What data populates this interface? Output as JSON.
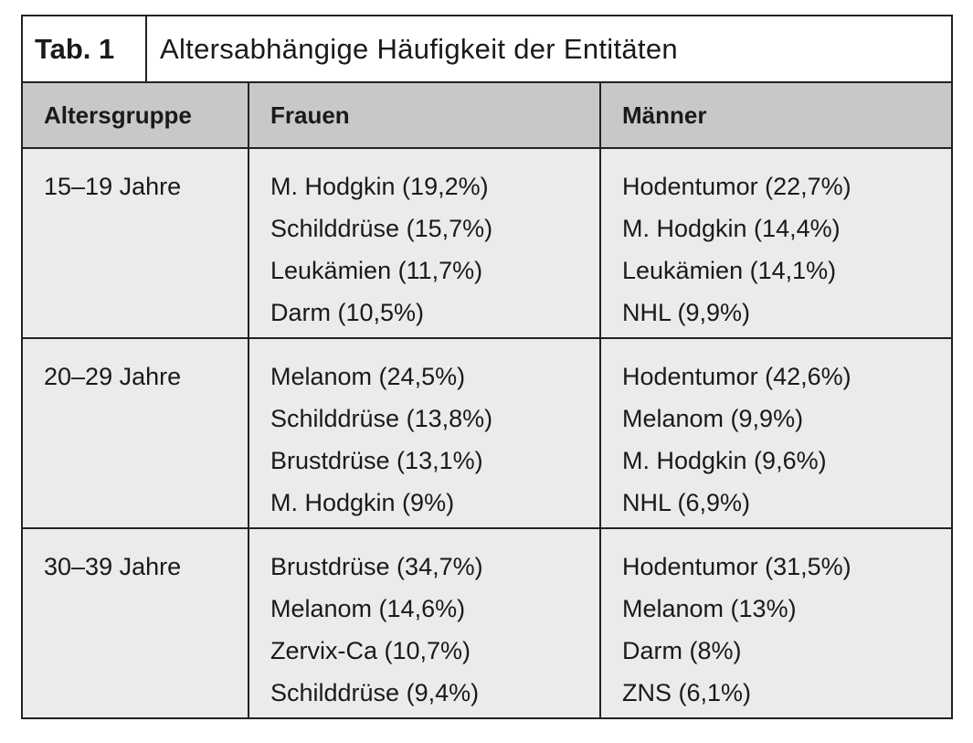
{
  "table": {
    "tab_label": "Tab. 1",
    "title": "Altersabhängige Häufigkeit der Entitäten",
    "headers": {
      "age": "Altersgruppe",
      "women": "Frauen",
      "men": "Männer"
    },
    "rows": [
      {
        "age": "15–19 Jahre",
        "women": [
          "M. Hodgkin (19,2%)",
          "Schilddrüse (15,7%)",
          "Leukämien (11,7%)",
          "Darm (10,5%)"
        ],
        "men": [
          "Hodentumor (22,7%)",
          "M. Hodgkin (14,4%)",
          "Leukämien (14,1%)",
          "NHL (9,9%)"
        ]
      },
      {
        "age": "20–29 Jahre",
        "women": [
          "Melanom (24,5%)",
          "Schilddrüse (13,8%)",
          "Brustdrüse (13,1%)",
          "M. Hodgkin (9%)"
        ],
        "men": [
          "Hodentumor (42,6%)",
          "Melanom (9,9%)",
          "M. Hodgkin (9,6%)",
          "NHL (6,9%)"
        ]
      },
      {
        "age": "30–39 Jahre",
        "women": [
          "Brustdrüse (34,7%)",
          "Melanom (14,6%)",
          "Zervix-Ca (10,7%)",
          "Schilddrüse (9,4%)"
        ],
        "men": [
          "Hodentumor (31,5%)",
          "Melanom (13%)",
          "Darm (8%)",
          "ZNS (6,1%)"
        ]
      }
    ]
  }
}
